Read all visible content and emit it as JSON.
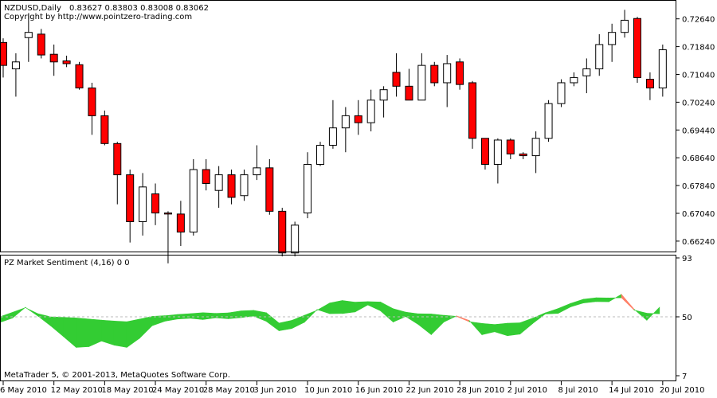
{
  "chart_data": [
    {
      "type": "candlestick",
      "title": "NZDUSD,Daily",
      "ohlc_label": "0.83627 0.83803 0.83008 0.83062",
      "copyright": "Copyright by http://www.pointzero-trading.com",
      "y_ticks": [
        "0.72640",
        "0.71840",
        "0.71040",
        "0.70240",
        "0.69440",
        "0.68640",
        "0.67840",
        "0.67040",
        "0.66240"
      ],
      "ylim": [
        0.6594,
        0.7316
      ],
      "x_ticks": [
        "6 May 2010",
        "12 May 2010",
        "18 May 2010",
        "24 May 2010",
        "28 May 2010",
        "3 Jun 2010",
        "10 Jun 2010",
        "16 Jun 2010",
        "22 Jun 2010",
        "28 Jun 2010",
        "2 Jul 2010",
        "8 Jul 2010",
        "14 Jul 2010",
        "20 Jul 2010"
      ],
      "bull_color": "#ffffff",
      "bear_color": "#ff0000",
      "candles": [
        {
          "o": 0.7196,
          "h": 0.7208,
          "l": 0.7095,
          "c": 0.713
        },
        {
          "o": 0.712,
          "h": 0.7165,
          "l": 0.704,
          "c": 0.714
        },
        {
          "o": 0.721,
          "h": 0.728,
          "l": 0.714,
          "c": 0.7225
        },
        {
          "o": 0.722,
          "h": 0.7235,
          "l": 0.715,
          "c": 0.716
        },
        {
          "o": 0.7162,
          "h": 0.719,
          "l": 0.71,
          "c": 0.714
        },
        {
          "o": 0.7143,
          "h": 0.7158,
          "l": 0.7125,
          "c": 0.7135
        },
        {
          "o": 0.7132,
          "h": 0.714,
          "l": 0.706,
          "c": 0.7065
        },
        {
          "o": 0.7065,
          "h": 0.708,
          "l": 0.693,
          "c": 0.6985
        },
        {
          "o": 0.6985,
          "h": 0.7,
          "l": 0.69,
          "c": 0.6905
        },
        {
          "o": 0.6905,
          "h": 0.691,
          "l": 0.673,
          "c": 0.6815
        },
        {
          "o": 0.6815,
          "h": 0.683,
          "l": 0.662,
          "c": 0.668
        },
        {
          "o": 0.668,
          "h": 0.682,
          "l": 0.664,
          "c": 0.678
        },
        {
          "o": 0.676,
          "h": 0.679,
          "l": 0.667,
          "c": 0.6705
        },
        {
          "o": 0.6705,
          "h": 0.671,
          "l": 0.656,
          "c": 0.6702
        },
        {
          "o": 0.6702,
          "h": 0.674,
          "l": 0.661,
          "c": 0.665
        },
        {
          "o": 0.665,
          "h": 0.686,
          "l": 0.664,
          "c": 0.683
        },
        {
          "o": 0.683,
          "h": 0.686,
          "l": 0.677,
          "c": 0.679
        },
        {
          "o": 0.677,
          "h": 0.684,
          "l": 0.672,
          "c": 0.6815
        },
        {
          "o": 0.6815,
          "h": 0.683,
          "l": 0.673,
          "c": 0.675
        },
        {
          "o": 0.6755,
          "h": 0.683,
          "l": 0.674,
          "c": 0.6815
        },
        {
          "o": 0.6815,
          "h": 0.69,
          "l": 0.68,
          "c": 0.6835
        },
        {
          "o": 0.6835,
          "h": 0.686,
          "l": 0.67,
          "c": 0.671
        },
        {
          "o": 0.671,
          "h": 0.672,
          "l": 0.658,
          "c": 0.659
        },
        {
          "o": 0.659,
          "h": 0.668,
          "l": 0.658,
          "c": 0.667
        },
        {
          "o": 0.6705,
          "h": 0.688,
          "l": 0.669,
          "c": 0.6845
        },
        {
          "o": 0.6845,
          "h": 0.691,
          "l": 0.684,
          "c": 0.69
        },
        {
          "o": 0.69,
          "h": 0.703,
          "l": 0.689,
          "c": 0.695
        },
        {
          "o": 0.695,
          "h": 0.701,
          "l": 0.688,
          "c": 0.6985
        },
        {
          "o": 0.6985,
          "h": 0.703,
          "l": 0.693,
          "c": 0.6965
        },
        {
          "o": 0.6965,
          "h": 0.706,
          "l": 0.694,
          "c": 0.703
        },
        {
          "o": 0.703,
          "h": 0.707,
          "l": 0.698,
          "c": 0.706
        },
        {
          "o": 0.711,
          "h": 0.7165,
          "l": 0.704,
          "c": 0.707
        },
        {
          "o": 0.707,
          "h": 0.712,
          "l": 0.703,
          "c": 0.703
        },
        {
          "o": 0.703,
          "h": 0.7165,
          "l": 0.703,
          "c": 0.713
        },
        {
          "o": 0.713,
          "h": 0.714,
          "l": 0.707,
          "c": 0.708
        },
        {
          "o": 0.708,
          "h": 0.716,
          "l": 0.701,
          "c": 0.7135
        },
        {
          "o": 0.714,
          "h": 0.715,
          "l": 0.706,
          "c": 0.7075
        },
        {
          "o": 0.708,
          "h": 0.7085,
          "l": 0.689,
          "c": 0.692
        },
        {
          "o": 0.692,
          "h": 0.692,
          "l": 0.683,
          "c": 0.6845
        },
        {
          "o": 0.6845,
          "h": 0.692,
          "l": 0.679,
          "c": 0.6915
        },
        {
          "o": 0.6915,
          "h": 0.692,
          "l": 0.686,
          "c": 0.6875
        },
        {
          "o": 0.6875,
          "h": 0.688,
          "l": 0.686,
          "c": 0.687
        },
        {
          "o": 0.687,
          "h": 0.694,
          "l": 0.682,
          "c": 0.692
        },
        {
          "o": 0.692,
          "h": 0.703,
          "l": 0.691,
          "c": 0.702
        },
        {
          "o": 0.702,
          "h": 0.709,
          "l": 0.701,
          "c": 0.708
        },
        {
          "o": 0.708,
          "h": 0.711,
          "l": 0.707,
          "c": 0.7095
        },
        {
          "o": 0.71,
          "h": 0.715,
          "l": 0.705,
          "c": 0.712
        },
        {
          "o": 0.712,
          "h": 0.722,
          "l": 0.71,
          "c": 0.719
        },
        {
          "o": 0.719,
          "h": 0.725,
          "l": 0.714,
          "c": 0.7225
        },
        {
          "o": 0.7225,
          "h": 0.729,
          "l": 0.721,
          "c": 0.726
        },
        {
          "o": 0.7265,
          "h": 0.727,
          "l": 0.708,
          "c": 0.7095
        },
        {
          "o": 0.709,
          "h": 0.711,
          "l": 0.703,
          "c": 0.7065
        },
        {
          "o": 0.7065,
          "h": 0.719,
          "l": 0.704,
          "c": 0.7175
        }
      ]
    },
    {
      "type": "area",
      "title": "PZ Market Sentiment (4,16) 0 0",
      "footer": "MetaTrader 5, © 2001-2013, MetaQuotes Software Corp.",
      "y_ticks": [
        "93",
        "50",
        "7"
      ],
      "ylim": [
        7,
        93
      ],
      "level": 50,
      "up_color": "#33cc33",
      "down_color": "#ff7f66",
      "series": [
        {
          "values": [
            50.0,
            53.3,
            56.7,
            52.2,
            50.0,
            49.6,
            49.2,
            48.4,
            47.6,
            46.9,
            46.4,
            48.3,
            50.3,
            50.8,
            51.7,
            52.3,
            53.0,
            52.5,
            52.9,
            54.3,
            54.7,
            53.0,
            45.4,
            47.4,
            51.1,
            54.8,
            60.1,
            61.9,
            60.7,
            61.1,
            60.8,
            55.9,
            53.4,
            52.2,
            52.1,
            51.1,
            50.3,
            46.4,
            45.2,
            44.4,
            45.3,
            45.6,
            49.0,
            52.9,
            56.0,
            59.8,
            62.8,
            63.9,
            63.8,
            63.9,
            54.9,
            52.6,
            52.2
          ]
        },
        {
          "values": [
            45.9,
            49.2,
            56.9,
            50.5,
            43.4,
            35.6,
            27.7,
            28.2,
            32.3,
            29.3,
            27.7,
            34.3,
            43.5,
            46.8,
            48.4,
            48.9,
            48.0,
            49.3,
            48.6,
            49.4,
            50.5,
            46.7,
            39.8,
            41.4,
            46.0,
            55.3,
            52.3,
            52.4,
            53.6,
            58.7,
            54.4,
            46.2,
            50.2,
            44.3,
            37.0,
            46.2,
            50.7,
            47.3,
            36.9,
            39.1,
            36.2,
            37.4,
            45.1,
            52.1,
            52.5,
            57.3,
            60.1,
            61.1,
            61.0,
            66.4,
            55.5,
            47.5,
            57.0
          ]
        }
      ]
    }
  ]
}
